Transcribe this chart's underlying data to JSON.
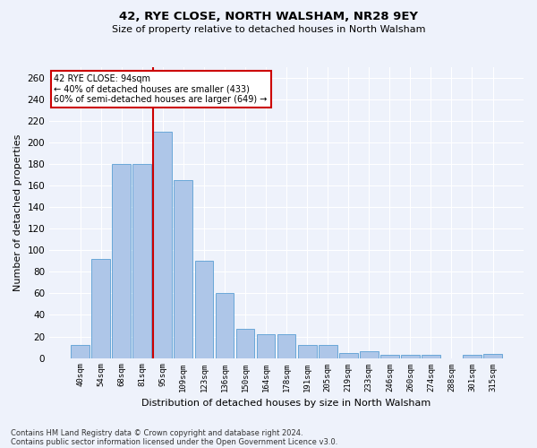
{
  "title1": "42, RYE CLOSE, NORTH WALSHAM, NR28 9EY",
  "title2": "Size of property relative to detached houses in North Walsham",
  "xlabel": "Distribution of detached houses by size in North Walsham",
  "ylabel": "Number of detached properties",
  "bar_labels": [
    "40sqm",
    "54sqm",
    "68sqm",
    "81sqm",
    "95sqm",
    "109sqm",
    "123sqm",
    "136sqm",
    "150sqm",
    "164sqm",
    "178sqm",
    "191sqm",
    "205sqm",
    "219sqm",
    "233sqm",
    "246sqm",
    "260sqm",
    "274sqm",
    "288sqm",
    "301sqm",
    "315sqm"
  ],
  "bar_values": [
    12,
    92,
    180,
    180,
    210,
    165,
    90,
    60,
    27,
    22,
    22,
    12,
    12,
    5,
    6,
    3,
    3,
    3,
    0,
    3,
    4
  ],
  "bar_color": "#aec6e8",
  "bar_edge_color": "#5a9fd4",
  "red_line_index": 4,
  "annotation_title": "42 RYE CLOSE: 94sqm",
  "annotation_line1": "← 40% of detached houses are smaller (433)",
  "annotation_line2": "60% of semi-detached houses are larger (649) →",
  "annotation_box_color": "#ffffff",
  "annotation_box_edge": "#cc0000",
  "red_line_color": "#cc0000",
  "footer1": "Contains HM Land Registry data © Crown copyright and database right 2024.",
  "footer2": "Contains public sector information licensed under the Open Government Licence v3.0.",
  "background_color": "#eef2fb",
  "ylim": [
    0,
    270
  ],
  "yticks": [
    0,
    20,
    40,
    60,
    80,
    100,
    120,
    140,
    160,
    180,
    200,
    220,
    240,
    260
  ]
}
